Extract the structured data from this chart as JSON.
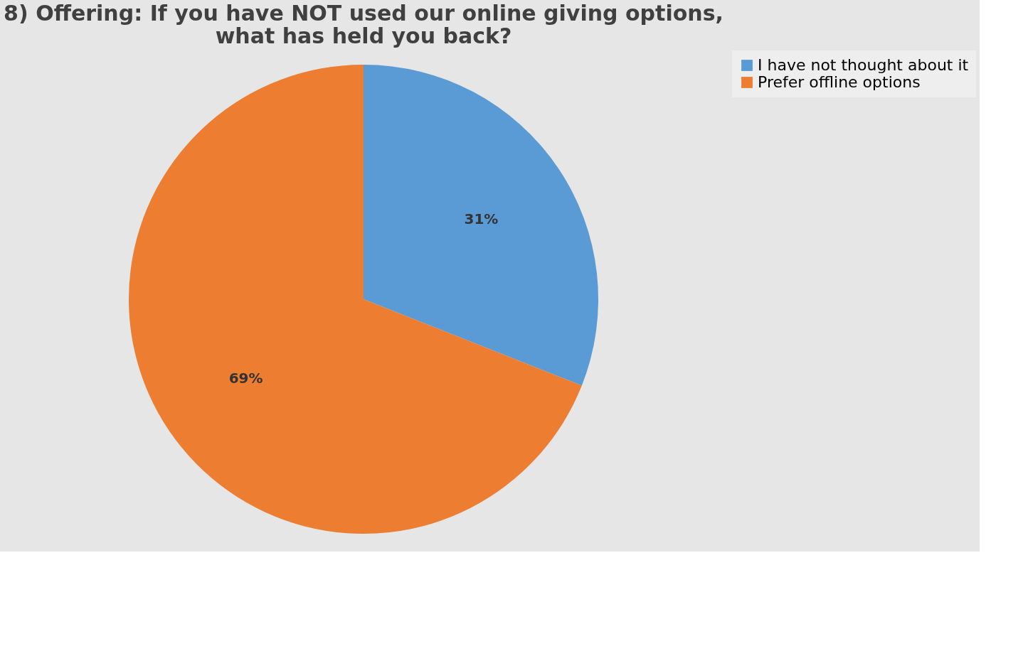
{
  "chart_data": {
    "type": "pie",
    "title": "8) Offering: If you have NOT used our online giving options,\nwhat has held you back?",
    "categories": [
      "I have not thought about it",
      "Prefer offline options"
    ],
    "values": [
      31,
      69
    ],
    "colors": [
      "#5b9bd5",
      "#ed7d31"
    ],
    "value_labels": [
      "31%",
      "69%"
    ],
    "legend": "right"
  }
}
